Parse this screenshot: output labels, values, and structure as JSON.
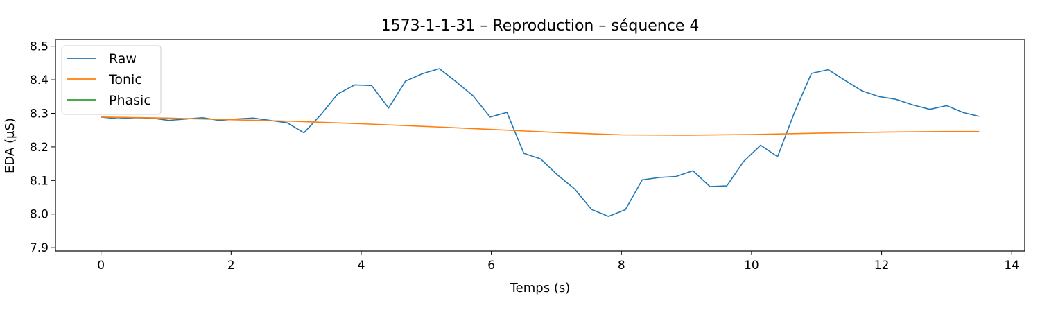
{
  "chart_data": {
    "type": "line",
    "title": "1573-1-1-31 – Reproduction – séquence 4",
    "xlabel": "Temps (s)",
    "ylabel": "EDA (µS)",
    "xlim": [
      -0.7,
      14.2
    ],
    "ylim": [
      7.89,
      8.52
    ],
    "xticks": [
      0,
      2,
      4,
      6,
      8,
      10,
      12,
      14
    ],
    "yticks": [
      7.9,
      8.0,
      8.1,
      8.2,
      8.3,
      8.4,
      8.5
    ],
    "xtick_labels": [
      "0",
      "2",
      "4",
      "6",
      "8",
      "10",
      "12",
      "14"
    ],
    "ytick_labels": [
      "7.9",
      "8.0",
      "8.1",
      "8.2",
      "8.3",
      "8.4",
      "8.5"
    ],
    "grid": false,
    "legend_position": "upper left",
    "series": [
      {
        "name": "Raw",
        "color": "#1f77b4",
        "x": [
          0,
          0.26,
          0.52,
          0.78,
          1.04,
          1.3,
          1.56,
          1.82,
          2.08,
          2.34,
          2.6,
          2.86,
          3.12,
          3.38,
          3.64,
          3.9,
          4.16,
          4.42,
          4.68,
          4.94,
          5.2,
          5.46,
          5.72,
          5.98,
          6.24,
          6.5,
          6.76,
          7.02,
          7.28,
          7.54,
          7.8,
          8.06,
          8.32,
          8.58,
          8.84,
          9.1,
          9.36,
          9.62,
          9.88,
          10.14,
          10.4,
          10.66,
          10.92,
          11.18,
          11.44,
          11.7,
          11.96,
          12.22,
          12.48,
          12.74,
          13.0,
          13.26,
          13.5
        ],
        "y": [
          8.289,
          8.284,
          8.287,
          8.286,
          8.279,
          8.283,
          8.287,
          8.279,
          8.283,
          8.286,
          8.279,
          8.272,
          8.242,
          8.296,
          8.358,
          8.385,
          8.383,
          8.316,
          8.396,
          8.418,
          8.433,
          8.394,
          8.352,
          8.289,
          8.303,
          8.181,
          8.164,
          8.116,
          8.075,
          8.014,
          7.993,
          8.013,
          8.102,
          8.109,
          8.112,
          8.129,
          8.082,
          8.084,
          8.157,
          8.205,
          8.171,
          8.303,
          8.419,
          8.43,
          8.398,
          8.367,
          8.35,
          8.342,
          8.325,
          8.312,
          8.323,
          8.302,
          8.291
        ]
      },
      {
        "name": "Tonic",
        "color": "#ff7f0e",
        "x": [
          0,
          1,
          2,
          3,
          4,
          5,
          6,
          7,
          8,
          9,
          10,
          11,
          12,
          13,
          13.5
        ],
        "y": [
          8.289,
          8.286,
          8.281,
          8.276,
          8.269,
          8.261,
          8.252,
          8.243,
          8.236,
          8.235,
          8.237,
          8.241,
          8.244,
          8.246,
          8.246
        ]
      },
      {
        "name": "Phasic",
        "color": "#2ca02c",
        "x": [],
        "y": []
      }
    ]
  }
}
